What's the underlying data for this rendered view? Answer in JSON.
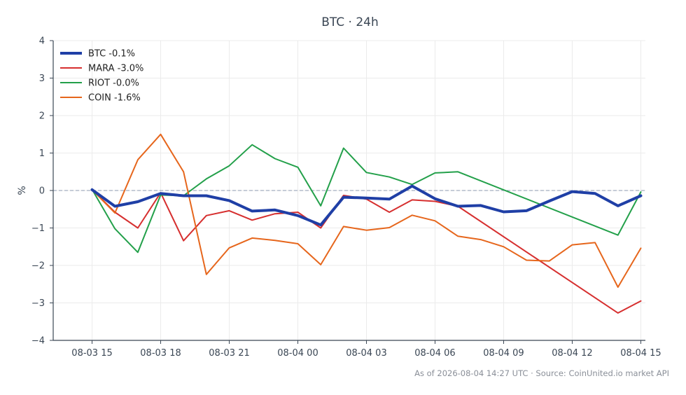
{
  "chart_data": {
    "type": "line",
    "title": "BTC · 24h",
    "xlabel": "",
    "ylabel": "%",
    "x_ticks": [
      "08-03 15",
      "08-03 18",
      "08-03 21",
      "08-04 00",
      "08-04 03",
      "08-04 06",
      "08-04 09",
      "08-04 12",
      "08-04 15"
    ],
    "x_range_hours": [
      -1.7,
      24.2
    ],
    "ylim": [
      -4,
      4
    ],
    "y_ticks": [
      -4,
      -3,
      -2,
      -1,
      0,
      1,
      2,
      3,
      4
    ],
    "grid": true,
    "zero_line": true,
    "legend_position": "top-left",
    "series": [
      {
        "name": "BTC -0.1%",
        "color": "#1f3fa6",
        "emphasis": true,
        "x": [
          0,
          1,
          2,
          3,
          4,
          5,
          6,
          7,
          8,
          9,
          10,
          11,
          12,
          13,
          14,
          15,
          16,
          17,
          18,
          19,
          20,
          21,
          22,
          23,
          24
        ],
        "y": [
          0.02,
          -0.42,
          -0.3,
          -0.08,
          -0.14,
          -0.14,
          -0.27,
          -0.55,
          -0.52,
          -0.67,
          -0.92,
          -0.18,
          -0.2,
          -0.23,
          0.12,
          -0.22,
          -0.42,
          -0.4,
          -0.57,
          -0.54,
          -0.28,
          -0.03,
          -0.08,
          -0.41,
          -0.14
        ]
      },
      {
        "name": "MARA -3.0%",
        "color": "#d62f2f",
        "x": [
          0,
          1,
          2,
          3,
          4,
          5,
          6,
          7,
          8,
          9,
          10,
          11,
          12,
          13,
          14,
          15,
          16,
          23,
          24
        ],
        "y": [
          0.03,
          -0.58,
          -1.0,
          -0.06,
          -1.34,
          -0.67,
          -0.54,
          -0.79,
          -0.62,
          -0.58,
          -1.0,
          -0.13,
          -0.23,
          -0.58,
          -0.25,
          -0.29,
          -0.42,
          -3.27,
          -2.95
        ]
      },
      {
        "name": "RIOT -0.0%",
        "color": "#23a04a",
        "x": [
          0,
          1,
          2,
          3,
          4,
          5,
          6,
          7,
          8,
          9,
          10,
          11,
          12,
          13,
          14,
          15,
          16,
          23,
          24
        ],
        "y": [
          0.03,
          -1.02,
          -1.65,
          -0.12,
          -0.14,
          0.31,
          0.66,
          1.22,
          0.85,
          0.62,
          -0.41,
          1.13,
          0.48,
          0.36,
          0.16,
          0.47,
          0.5,
          -1.19,
          -0.04
        ]
      },
      {
        "name": "COIN -1.6%",
        "color": "#e6661c",
        "x": [
          0,
          1,
          2,
          3,
          4,
          5,
          6,
          7,
          8,
          9,
          10,
          11,
          12,
          13,
          14,
          15,
          16,
          17,
          18,
          19,
          20,
          21,
          22,
          23,
          24
        ],
        "y": [
          0.02,
          -0.6,
          0.82,
          1.5,
          0.5,
          -2.24,
          -1.53,
          -1.27,
          -1.33,
          -1.42,
          -1.98,
          -0.96,
          -1.06,
          -0.99,
          -0.66,
          -0.81,
          -1.22,
          -1.31,
          -1.5,
          -1.86,
          -1.88,
          -1.45,
          -1.39,
          -2.58,
          -1.54
        ]
      }
    ]
  },
  "footer": "As of 2026-08-04 14:27 UTC · Source: CoinUnited.io market API"
}
